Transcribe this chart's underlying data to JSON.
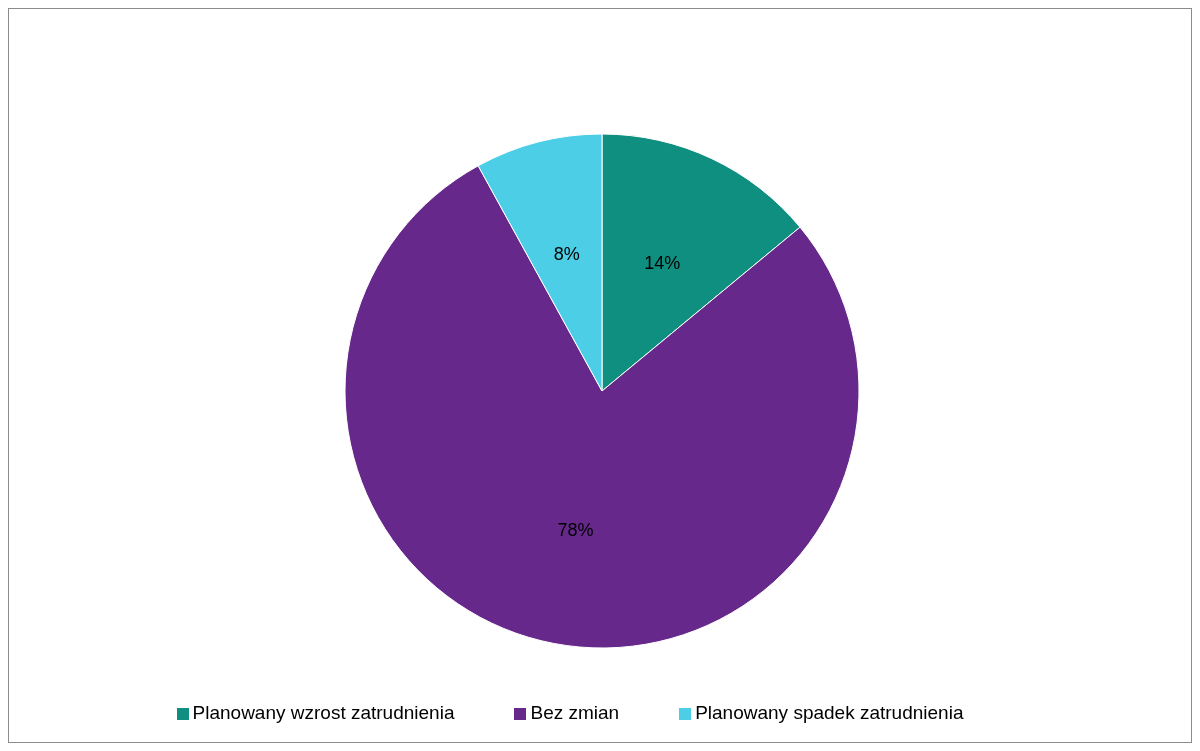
{
  "chart_data": {
    "type": "pie",
    "categories": [
      "Planowany wzrost zatrudnienia",
      "Bez zmian",
      "Planowany spadek zatrudnienia"
    ],
    "values": [
      14,
      78,
      8
    ],
    "colors": [
      "#0f8f80",
      "#66288a",
      "#4ccfe6"
    ],
    "value_labels": [
      "14%",
      "78%",
      "8%"
    ],
    "legend": "bottom"
  }
}
